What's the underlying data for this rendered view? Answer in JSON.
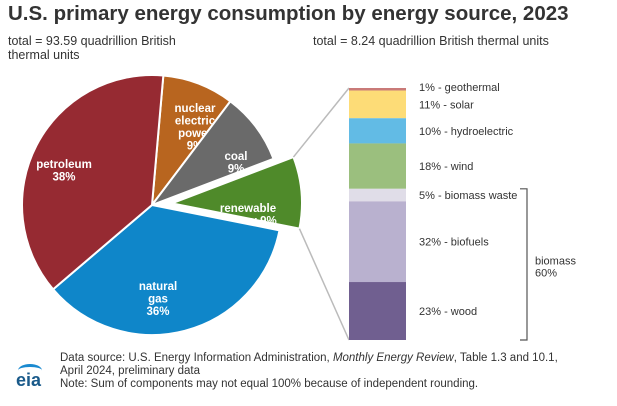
{
  "chart_data": [
    {
      "type": "pie",
      "title": "U.S. primary energy consumption by energy source, 2023",
      "subtitle": "total = 93.59 quadrillion British thermal units",
      "slices": [
        {
          "label": "nuclear electric power",
          "value": 9,
          "color": "#b8651f",
          "lines": [
            "nuclear",
            "electric",
            "power",
            "9%"
          ]
        },
        {
          "label": "coal",
          "value": 9,
          "color": "#6a6a6a",
          "lines": [
            "coal",
            "9%"
          ]
        },
        {
          "label": "renewable energy",
          "value": 9,
          "color": "#4f8a2a",
          "lines": [
            "renewable",
            "energy 9%"
          ],
          "exploded": true
        },
        {
          "label": "natural gas",
          "value": 36,
          "color": "#0f86c9",
          "lines": [
            "natural",
            "gas",
            "36%"
          ]
        },
        {
          "label": "petroleum",
          "value": 38,
          "color": "#962a32",
          "lines": [
            "petroleum",
            "38%"
          ]
        }
      ]
    },
    {
      "type": "bar",
      "stacked": true,
      "subtitle": "total = 8.24 quadrillion British thermal units",
      "segments": [
        {
          "label": "1% - geothermal",
          "value": 1,
          "color": "#c97a78"
        },
        {
          "label": "11% - solar",
          "value": 11,
          "color": "#fddc77"
        },
        {
          "label": "10% - hydroelectric",
          "value": 10,
          "color": "#62bbe5"
        },
        {
          "label": "18% - wind",
          "value": 18,
          "color": "#9bbf7e"
        },
        {
          "label": "5% - biomass waste",
          "value": 5,
          "color": "#e0dde8"
        },
        {
          "label": "32% - biofuels",
          "value": 32,
          "color": "#b9b1cf"
        },
        {
          "label": "23% - wood",
          "value": 23,
          "color": "#705f90"
        }
      ],
      "group": {
        "label": "biomass",
        "value": "60%"
      }
    }
  ],
  "footer": {
    "source_pre": "Data source: U.S. Energy Information Administration, ",
    "source_italic": "Monthly Energy Review",
    "source_post": ", Table 1.3 and 10.1,",
    "line2": "April 2024, preliminary data",
    "note": "Note: Sum of components may not equal 100% because of independent rounding."
  },
  "logo": "eia"
}
